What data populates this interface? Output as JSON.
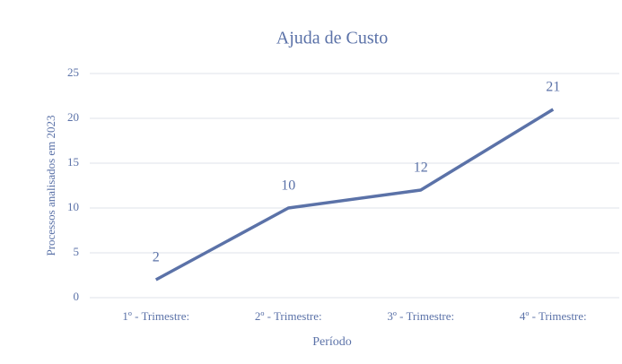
{
  "chart_data": {
    "type": "line",
    "title": "Ajuda de Custo",
    "x_label": "Período",
    "y_label": "Processos analisados em 2023",
    "categories": [
      "1º - Trimestre:",
      "2º - Trimestre:",
      "3º - Trimestre:",
      "4º - Trimestre:"
    ],
    "values": [
      2,
      10,
      12,
      21
    ],
    "color": "#5b72a8",
    "ylim": [
      0,
      25
    ],
    "yticks": [
      0,
      5,
      10,
      15,
      20,
      25
    ],
    "grid": true
  }
}
